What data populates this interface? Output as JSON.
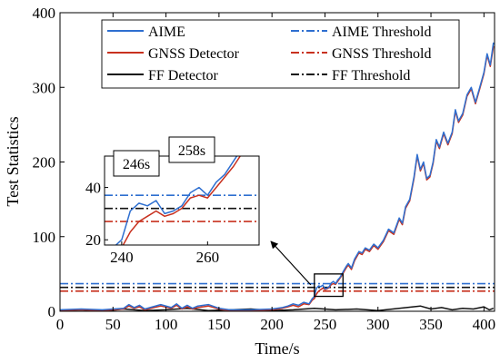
{
  "chart_data": {
    "type": "line",
    "xlabel": "Time/s",
    "ylabel": "Test Statistics",
    "xlim": [
      0,
      410
    ],
    "ylim": [
      0,
      400
    ],
    "xticks": [
      0,
      50,
      100,
      150,
      200,
      250,
      300,
      350,
      400
    ],
    "yticks": [
      0,
      100,
      200,
      300,
      400
    ],
    "grid": false,
    "legend_position": "top-right",
    "series": [
      {
        "name": "AIME",
        "color": "#2e6fd0",
        "style": "solid",
        "x": [
          0,
          20,
          40,
          60,
          65,
          70,
          75,
          80,
          95,
          105,
          110,
          115,
          120,
          125,
          130,
          140,
          150,
          160,
          180,
          200,
          210,
          215,
          220,
          225,
          230,
          235,
          238,
          240,
          242,
          244,
          246,
          248,
          250,
          252,
          254,
          256,
          258,
          260,
          262,
          264,
          266,
          268,
          270,
          272,
          275,
          278,
          282,
          285,
          288,
          292,
          296,
          300,
          305,
          310,
          315,
          320,
          323,
          326,
          330,
          334,
          337,
          340,
          343,
          346,
          349,
          352,
          355,
          358,
          362,
          366,
          370,
          373,
          376,
          380,
          384,
          388,
          392,
          396,
          400,
          403,
          406,
          409
        ],
        "y": [
          2,
          3,
          2,
          4,
          9,
          5,
          8,
          3,
          9,
          5,
          10,
          4,
          8,
          4,
          7,
          9,
          4,
          2,
          2,
          3,
          5,
          7,
          10,
          8,
          12,
          10,
          17,
          20,
          31,
          34,
          33,
          35,
          30,
          31,
          33,
          38,
          40,
          37,
          42,
          45,
          50,
          55,
          60,
          64,
          58,
          70,
          80,
          78,
          85,
          82,
          90,
          85,
          95,
          110,
          105,
          125,
          118,
          140,
          150,
          180,
          210,
          190,
          200,
          178,
          182,
          200,
          230,
          220,
          240,
          225,
          240,
          270,
          255,
          265,
          290,
          300,
          280,
          300,
          320,
          345,
          330,
          360
        ]
      },
      {
        "name": "GNSS Detector",
        "color": "#c8311f",
        "style": "solid",
        "x": [
          0,
          20,
          40,
          60,
          65,
          70,
          75,
          80,
          95,
          105,
          110,
          115,
          120,
          125,
          130,
          140,
          150,
          160,
          180,
          200,
          210,
          215,
          220,
          225,
          230,
          235,
          238,
          240,
          242,
          244,
          246,
          248,
          250,
          252,
          254,
          256,
          258,
          260,
          262,
          264,
          266,
          268,
          270,
          272,
          275,
          278,
          282,
          285,
          288,
          292,
          296,
          300,
          305,
          310,
          315,
          320,
          323,
          326,
          330,
          334,
          337,
          340,
          343,
          346,
          349,
          352,
          355,
          358,
          362,
          366,
          370,
          373,
          376,
          380,
          384,
          388,
          392,
          396,
          400,
          403,
          406,
          409
        ],
        "y": [
          1,
          2,
          1,
          3,
          7,
          4,
          6,
          2,
          7,
          4,
          8,
          3,
          6,
          3,
          5,
          7,
          3,
          1,
          1,
          2,
          4,
          6,
          8,
          6,
          10,
          9,
          15,
          17,
          23,
          27,
          29,
          31,
          29,
          30,
          32,
          36,
          37,
          36,
          40,
          44,
          48,
          53,
          58,
          62,
          56,
          68,
          78,
          76,
          83,
          80,
          88,
          83,
          93,
          108,
          103,
          123,
          116,
          138,
          148,
          178,
          208,
          188,
          198,
          176,
          180,
          198,
          228,
          218,
          238,
          223,
          238,
          268,
          253,
          263,
          288,
          298,
          278,
          298,
          318,
          343,
          328,
          355
        ]
      },
      {
        "name": "FF Detector",
        "color": "#111111",
        "style": "solid",
        "x": [
          0,
          20,
          40,
          60,
          80,
          100,
          120,
          140,
          160,
          180,
          200,
          220,
          240,
          260,
          280,
          300,
          320,
          340,
          350,
          360,
          370,
          380,
          390,
          400,
          405,
          409
        ],
        "y": [
          1,
          2,
          0,
          3,
          1,
          2,
          4,
          1,
          2,
          3,
          1,
          2,
          4,
          2,
          3,
          1,
          4,
          7,
          3,
          5,
          2,
          4,
          3,
          6,
          2,
          4
        ]
      },
      {
        "name": "AIME Threshold",
        "color": "#2e6fd0",
        "style": "dashdot",
        "value": 37
      },
      {
        "name": "GNSS Threshold",
        "color": "#c8311f",
        "style": "dashdot",
        "value": 27
      },
      {
        "name": "FF Threshold",
        "color": "#111111",
        "style": "dashdot",
        "value": 32
      }
    ],
    "zoom_region": {
      "xlim": [
        240,
        267
      ],
      "ylim": [
        20,
        50
      ]
    },
    "inset": {
      "xlim": [
        236,
        272
      ],
      "ylim": [
        18,
        52
      ],
      "xticks": [
        240,
        260
      ],
      "yticks": [
        20,
        40
      ]
    },
    "annotations": [
      {
        "label": "246s",
        "x": 246
      },
      {
        "label": "258s",
        "x": 258
      }
    ]
  }
}
